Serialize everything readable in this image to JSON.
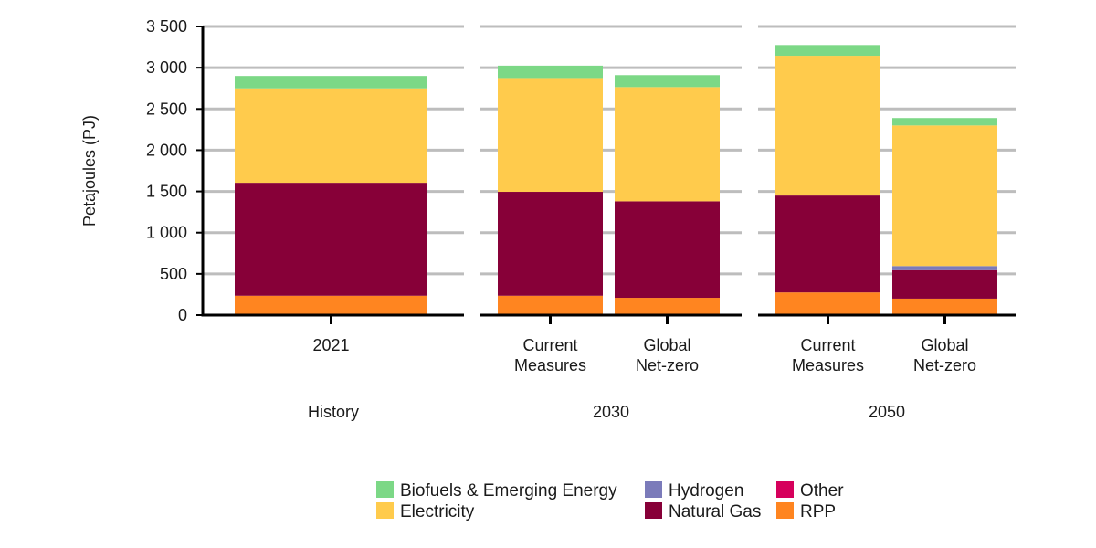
{
  "chart_data": {
    "type": "bar",
    "stacked": true,
    "ylabel": "Petajoules (PJ)",
    "ylim": [
      0,
      3500
    ],
    "y_ticks": [
      {
        "value": 0,
        "label": "0"
      },
      {
        "value": 500,
        "label": "500"
      },
      {
        "value": 1000,
        "label": "1 000"
      },
      {
        "value": 1500,
        "label": "1 500"
      },
      {
        "value": 2000,
        "label": "2 000"
      },
      {
        "value": 2500,
        "label": "2 500"
      },
      {
        "value": 3000,
        "label": "3 000"
      },
      {
        "value": 3500,
        "label": "3 500"
      }
    ],
    "grid": true,
    "legend_position": "bottom",
    "panels": [
      {
        "label": "History",
        "categories": [
          [
            "2021"
          ]
        ]
      },
      {
        "label": "2030",
        "categories": [
          [
            "Current",
            "Measures"
          ],
          [
            "Global",
            "Net-zero"
          ]
        ]
      },
      {
        "label": "2050",
        "categories": [
          [
            "Current",
            "Measures"
          ],
          [
            "Global",
            "Net-zero"
          ]
        ]
      }
    ],
    "series": [
      {
        "name": "RPP",
        "color": "#FF8520",
        "values": [
          235,
          235,
          210,
          275,
          200
        ]
      },
      {
        "name": "Other",
        "color": "#D6005C",
        "values": [
          0,
          0,
          0,
          0,
          0
        ]
      },
      {
        "name": "Natural Gas",
        "color": "#870038",
        "values": [
          1370,
          1260,
          1170,
          1175,
          345
        ]
      },
      {
        "name": "Hydrogen",
        "color": "#7B7BBA",
        "values": [
          0,
          0,
          0,
          0,
          50
        ]
      },
      {
        "name": "Electricity",
        "color": "#FFCB4C",
        "values": [
          1145,
          1380,
          1385,
          1695,
          1705
        ]
      },
      {
        "name": "Biofuels & Emerging Energy",
        "color": "#7CD886",
        "values": [
          150,
          150,
          145,
          130,
          90
        ]
      }
    ],
    "legend_order": [
      "Biofuels & Emerging Energy",
      "Hydrogen",
      "Other",
      "Electricity",
      "Natural Gas",
      "RPP"
    ]
  }
}
